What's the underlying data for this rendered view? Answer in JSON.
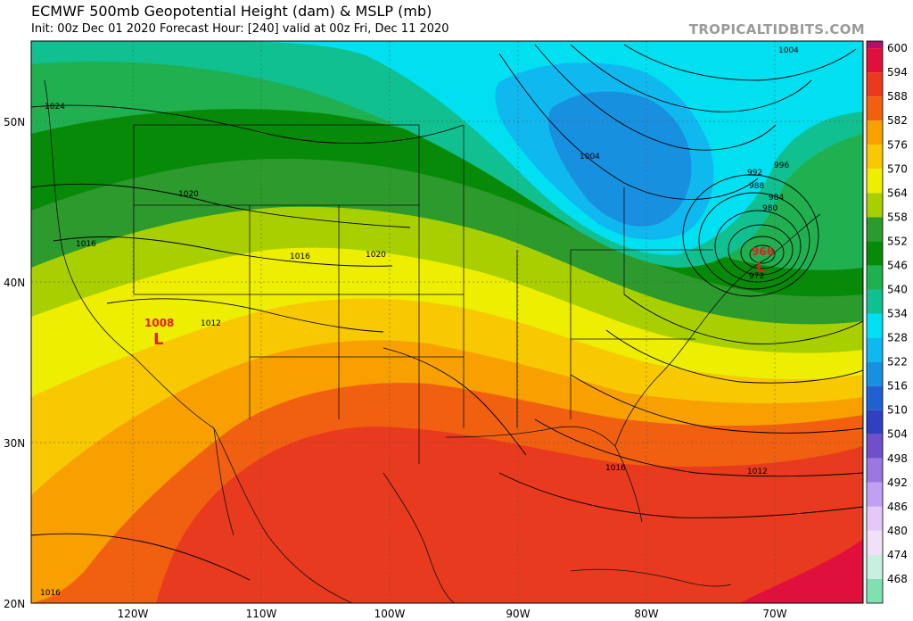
{
  "header": {
    "title": "ECMWF 500mb Geopotential Height (dam) & MSLP (mb)",
    "subtitle": "Init: 00z Dec 01 2020   Forecast Hour: [240]   valid at 00z Fri, Dec 11 2020",
    "watermark": "TROPICALTIDBITS.COM"
  },
  "axes": {
    "lat_labels": [
      "50N",
      "40N",
      "30N",
      "20N"
    ],
    "lon_labels": [
      "120W",
      "110W",
      "100W",
      "90W",
      "80W",
      "70W"
    ]
  },
  "colorbar": {
    "levels": [
      "600",
      "594",
      "588",
      "582",
      "576",
      "570",
      "564",
      "558",
      "552",
      "546",
      "540",
      "534",
      "528",
      "522",
      "516",
      "510",
      "504",
      "498",
      "492",
      "486",
      "480",
      "474",
      "468"
    ],
    "colors": [
      "#e0103c",
      "#e83a1e",
      "#f06010",
      "#f7a000",
      "#f8c800",
      "#eeee00",
      "#a8d000",
      "#2c9a2c",
      "#078a07",
      "#20b050",
      "#10c090",
      "#00e0f0",
      "#10b8f0",
      "#1890e0",
      "#2060d0",
      "#3040c0",
      "#7050c8",
      "#9a78e0",
      "#c0a0f0",
      "#e4c8f8",
      "#f0e0f8",
      "#c8f0e0",
      "#80e0b0"
    ]
  },
  "pressure_centers": [
    {
      "type": "L",
      "value": "1008",
      "color": "#e02020"
    },
    {
      "type": "L",
      "value": "966",
      "color": "#e02020"
    }
  ],
  "isobar_labels": [
    "1024",
    "1020",
    "1016",
    "1020",
    "1016",
    "1012",
    "1004",
    "1004",
    "992",
    "988",
    "984",
    "980",
    "996",
    "972",
    "1016",
    "1012",
    "1016"
  ]
}
